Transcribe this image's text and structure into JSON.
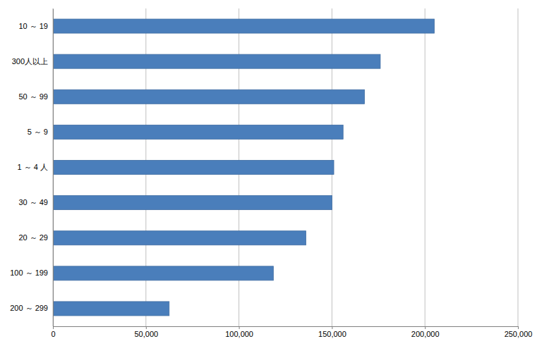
{
  "chart_data": {
    "type": "bar",
    "orientation": "horizontal",
    "categories": [
      "10 ～ 19",
      "300人以上",
      "50 ～ 99",
      "5 ～ 9",
      "1 ～ 4 人",
      "30 ～ 49",
      "20 ～ 29",
      "100 ～ 199",
      "200 ～ 299"
    ],
    "values": [
      205000,
      176000,
      167500,
      156000,
      151000,
      150000,
      136000,
      118500,
      62500
    ],
    "color": "#4a7ebb",
    "xlim": [
      0,
      250000
    ],
    "xticks": [
      0,
      {
        "value": 50000,
        "label": "50,000"
      },
      {
        "value": 100000,
        "label": "100,000"
      },
      {
        "value": 150000,
        "label": "150,000"
      },
      {
        "value": 200000,
        "label": "200,000"
      },
      {
        "value": 250000,
        "label": "250,000"
      }
    ],
    "grid": true
  }
}
